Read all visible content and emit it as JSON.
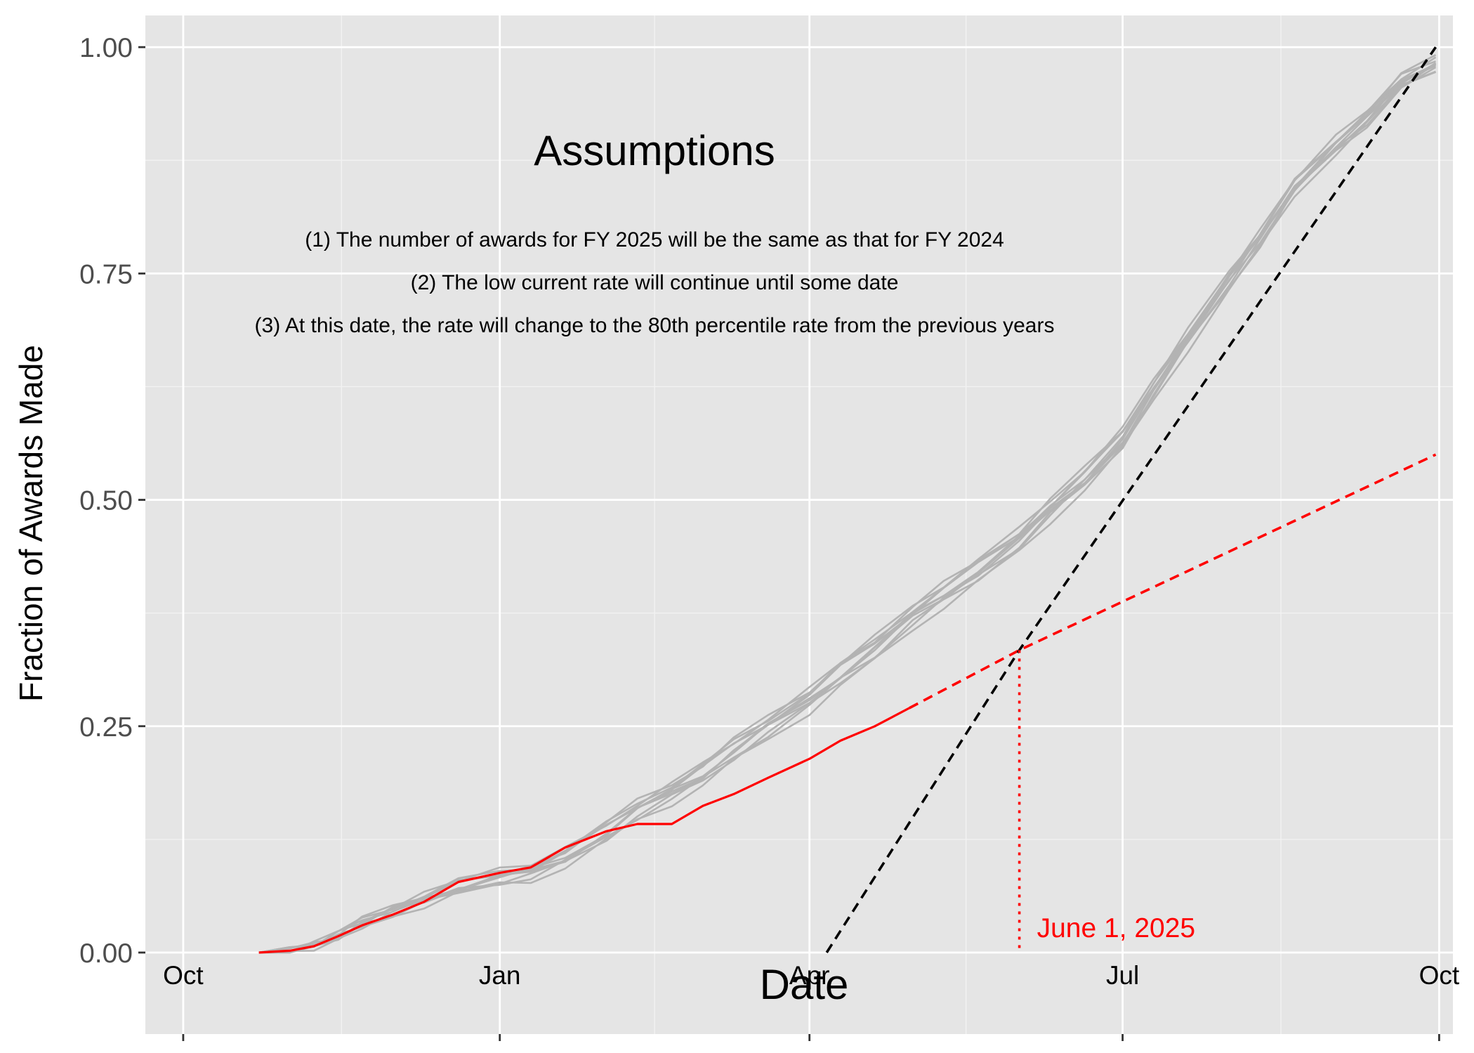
{
  "chart_data": {
    "type": "line",
    "title": "",
    "xlabel": "Date",
    "ylabel": "Fraction of Awards Made",
    "x_axis_type": "date",
    "xlim": [
      "2024-09-20",
      "2025-10-05"
    ],
    "ylim": [
      -0.09,
      1.035
    ],
    "x_ticks": [
      {
        "date": "2024-10-01",
        "label": "Oct"
      },
      {
        "date": "2025-01-01",
        "label": "Jan"
      },
      {
        "date": "2025-04-01",
        "label": "Apr"
      },
      {
        "date": "2025-07-01",
        "label": "Jul"
      },
      {
        "date": "2025-10-01",
        "label": "Oct"
      }
    ],
    "y_ticks": [
      {
        "value": 0,
        "label": "0.00"
      },
      {
        "value": 0.25,
        "label": "0.25"
      },
      {
        "value": 0.5,
        "label": "0.50"
      },
      {
        "value": 0.75,
        "label": "0.75"
      },
      {
        "value": 1,
        "label": "1.00"
      }
    ],
    "grid": true,
    "background": "#e5e5e5",
    "colors": {
      "previous_years": "#b3b3b3",
      "current_year": "#ff0000",
      "projection": "#000000"
    },
    "series": [
      {
        "kind": "previous-years-bundle",
        "count": 10,
        "points": [
          [
            "2024-10-23",
            0
          ],
          [
            "2024-11-01",
            0.002
          ],
          [
            "2024-11-08",
            0.008
          ],
          [
            "2024-11-15",
            0.018
          ],
          [
            "2024-11-22",
            0.032
          ],
          [
            "2024-12-01",
            0.046
          ],
          [
            "2024-12-10",
            0.058
          ],
          [
            "2024-12-20",
            0.072
          ],
          [
            "2025-01-01",
            0.082
          ],
          [
            "2025-01-10",
            0.088
          ],
          [
            "2025-01-20",
            0.104
          ],
          [
            "2025-02-01",
            0.132
          ],
          [
            "2025-02-10",
            0.156
          ],
          [
            "2025-02-20",
            0.176
          ],
          [
            "2025-03-01",
            0.196
          ],
          [
            "2025-03-10",
            0.222
          ],
          [
            "2025-03-20",
            0.248
          ],
          [
            "2025-04-01",
            0.278
          ],
          [
            "2025-04-10",
            0.306
          ],
          [
            "2025-04-20",
            0.334
          ],
          [
            "2025-05-01",
            0.37
          ],
          [
            "2025-05-10",
            0.394
          ],
          [
            "2025-05-20",
            0.42
          ],
          [
            "2025-06-01",
            0.454
          ],
          [
            "2025-06-10",
            0.488
          ],
          [
            "2025-06-20",
            0.522
          ],
          [
            "2025-07-01",
            0.566
          ],
          [
            "2025-07-10",
            0.62
          ],
          [
            "2025-07-20",
            0.676
          ],
          [
            "2025-08-01",
            0.74
          ],
          [
            "2025-08-10",
            0.786
          ],
          [
            "2025-08-20",
            0.844
          ],
          [
            "2025-09-01",
            0.89
          ],
          [
            "2025-09-10",
            0.92
          ],
          [
            "2025-09-20",
            0.96
          ],
          [
            "2025-09-30",
            0.98
          ]
        ]
      },
      {
        "kind": "current-year",
        "points": [
          [
            "2024-10-23",
            0
          ],
          [
            "2024-11-01",
            0.002
          ],
          [
            "2024-11-08",
            0.007
          ],
          [
            "2024-11-15",
            0.018
          ],
          [
            "2024-11-22",
            0.03
          ],
          [
            "2024-12-01",
            0.042
          ],
          [
            "2024-12-10",
            0.056
          ],
          [
            "2024-12-20",
            0.078
          ],
          [
            "2025-01-01",
            0.088
          ],
          [
            "2025-01-10",
            0.094
          ],
          [
            "2025-01-20",
            0.116
          ],
          [
            "2025-02-01",
            0.134
          ],
          [
            "2025-02-10",
            0.142
          ],
          [
            "2025-02-20",
            0.142
          ],
          [
            "2025-03-01",
            0.162
          ],
          [
            "2025-03-10",
            0.175
          ],
          [
            "2025-03-20",
            0.193
          ],
          [
            "2025-04-01",
            0.214
          ],
          [
            "2025-04-10",
            0.234
          ],
          [
            "2025-04-20",
            0.25
          ],
          [
            "2025-04-30",
            0.27
          ]
        ]
      },
      {
        "kind": "current-rate-projection",
        "points": [
          [
            "2025-04-30",
            0.27
          ],
          [
            "2025-06-01",
            0.334
          ],
          [
            "2025-09-30",
            0.55
          ]
        ]
      },
      {
        "kind": "80th-percentile-rate-projection",
        "points": [
          [
            "2025-04-06",
            0
          ],
          [
            "2025-06-01",
            0.334
          ],
          [
            "2025-09-30",
            1.0
          ]
        ]
      }
    ],
    "switch_marker": {
      "date": "2025-06-01",
      "value": 0.334,
      "label": "June 1, 2025"
    },
    "annotations": {
      "heading": "Assumptions",
      "lines": [
        "(1) The number of awards for FY 2025 will be the same as that for FY 2024",
        "(2) The low current rate will continue until some date",
        "(3) At this date, the rate will change to the 80th percentile rate from the previous years"
      ]
    }
  }
}
